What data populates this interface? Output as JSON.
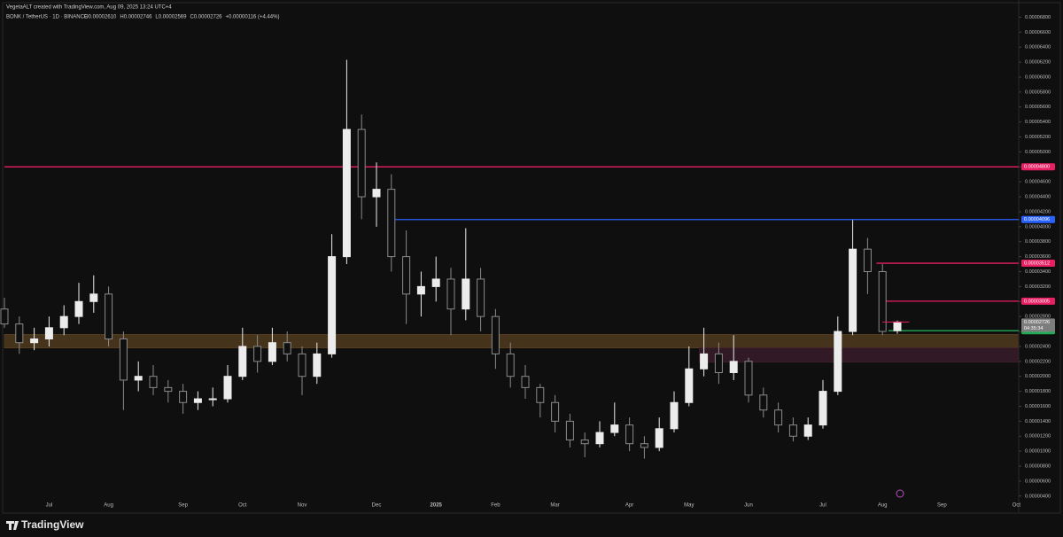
{
  "chart_data": {
    "type": "candlestick",
    "title": "BONK / TetherUS · 1D · BINANCE",
    "subtitle": "VegetaALT created with TradingView.com, Aug 09, 2025 13:24 UTC+4",
    "quote": [
      "O0.00002610",
      "H0.00002746",
      "L0.00002569",
      "C0.00002726",
      "+0.00000116 (+4.44%)"
    ],
    "categories": [
      null,
      null,
      null,
      "Jul",
      null,
      null,
      null,
      "Aug",
      null,
      null,
      null,
      null,
      "Sep",
      null,
      null,
      null,
      "Oct",
      null,
      null,
      null,
      "Nov",
      null,
      null,
      null,
      null,
      "Dec",
      null,
      null,
      null,
      "2025",
      null,
      null,
      null,
      "Feb",
      null,
      null,
      null,
      "Mar",
      null,
      null,
      null,
      null,
      "Apr",
      null,
      null,
      null,
      "May",
      null,
      null,
      null,
      "Jun",
      null,
      null,
      null,
      null,
      "Jul",
      null,
      null,
      null,
      "Aug",
      null,
      null,
      null,
      "Sep",
      null,
      null,
      null,
      null,
      "Oct"
    ],
    "open": [
      2.9e-05,
      2.7e-05,
      2.45e-05,
      2.5e-05,
      2.65e-05,
      2.8e-05,
      3e-05,
      3.1e-05,
      2.5e-05,
      1.95e-05,
      2e-05,
      1.85e-05,
      1.8e-05,
      1.65e-05,
      1.7e-05,
      1.7e-05,
      2e-05,
      2.4e-05,
      2.2e-05,
      2.45e-05,
      2.3e-05,
      2e-05,
      2.3e-05,
      3.6e-05,
      5.3e-05,
      4.4e-05,
      4.5e-05,
      3.6e-05,
      3.1e-05,
      3.2e-05,
      3.3e-05,
      2.9e-05,
      3.3e-05,
      2.8e-05,
      2.3e-05,
      2e-05,
      1.85e-05,
      1.65e-05,
      1.4e-05,
      1.15e-05,
      1.1e-05,
      1.25e-05,
      1.35e-05,
      1.1e-05,
      1.05e-05,
      1.3e-05,
      1.65e-05,
      2.1e-05,
      2.3e-05,
      2.05e-05,
      2.2e-05,
      1.75e-05,
      1.55e-05,
      1.35e-05,
      1.2e-05,
      1.35e-05,
      1.8e-05,
      2.6e-05,
      3.7e-05,
      3.4e-05,
      2.61e-05,
      null,
      null,
      null,
      null,
      null,
      null,
      null,
      null
    ],
    "high": [
      3.05e-05,
      2.8e-05,
      2.65e-05,
      2.8e-05,
      2.95e-05,
      3.25e-05,
      3.35e-05,
      3.2e-05,
      2.6e-05,
      2.2e-05,
      2.15e-05,
      1.95e-05,
      1.9e-05,
      1.8e-05,
      1.85e-05,
      2.15e-05,
      2.65e-05,
      2.55e-05,
      2.65e-05,
      2.6e-05,
      2.4e-05,
      2.45e-05,
      3.9e-05,
      6.23e-05,
      5.5e-05,
      4.86e-05,
      4.7e-05,
      3.95e-05,
      3.4e-05,
      3.6e-05,
      3.45e-05,
      3.98e-05,
      3.45e-05,
      2.9e-05,
      2.45e-05,
      2.15e-05,
      1.9e-05,
      1.75e-05,
      1.5e-05,
      1.25e-05,
      1.4e-05,
      1.65e-05,
      1.45e-05,
      1.2e-05,
      1.45e-05,
      1.8e-05,
      2.4e-05,
      2.65e-05,
      2.45e-05,
      2.55e-05,
      2.25e-05,
      1.85e-05,
      1.65e-05,
      1.45e-05,
      1.45e-05,
      1.95e-05,
      2.8e-05,
      4.09e-05,
      3.85e-05,
      3.5e-05,
      2.746e-05,
      null,
      null,
      null,
      null,
      null,
      null,
      null,
      null
    ],
    "low": [
      2.65e-05,
      2.3e-05,
      2.35e-05,
      2.4e-05,
      2.55e-05,
      2.7e-05,
      2.85e-05,
      2.4e-05,
      1.55e-05,
      1.8e-05,
      1.75e-05,
      1.65e-05,
      1.5e-05,
      1.55e-05,
      1.6e-05,
      1.65e-05,
      1.95e-05,
      2.05e-05,
      2.15e-05,
      2.2e-05,
      1.75e-05,
      1.9e-05,
      2.25e-05,
      3.5e-05,
      4.1e-05,
      4e-05,
      3.4e-05,
      2.7e-05,
      2.8e-05,
      3e-05,
      2.55e-05,
      2.75e-05,
      2.6e-05,
      2.1e-05,
      1.85e-05,
      1.7e-05,
      1.45e-05,
      1.25e-05,
      1.05e-05,
      9.2e-06,
      1.05e-05,
      1.2e-05,
      1e-05,
      9e-06,
      1e-05,
      1.25e-05,
      1.6e-05,
      2e-05,
      1.9e-05,
      1.95e-05,
      1.65e-05,
      1.45e-05,
      1.25e-05,
      1.13e-05,
      1.15e-05,
      1.3e-05,
      1.75e-05,
      2.55e-05,
      3.1e-05,
      2.55e-05,
      2.569e-05,
      null,
      null,
      null,
      null,
      null,
      null,
      null,
      null
    ],
    "close": [
      2.7e-05,
      2.45e-05,
      2.5e-05,
      2.65e-05,
      2.8e-05,
      3e-05,
      3.1e-05,
      2.5e-05,
      1.95e-05,
      2e-05,
      1.85e-05,
      1.8e-05,
      1.65e-05,
      1.7e-05,
      1.7e-05,
      2e-05,
      2.4e-05,
      2.2e-05,
      2.45e-05,
      2.3e-05,
      2e-05,
      2.3e-05,
      3.6e-05,
      5.3e-05,
      4.4e-05,
      4.5e-05,
      3.6e-05,
      3.1e-05,
      3.2e-05,
      3.3e-05,
      2.9e-05,
      3.3e-05,
      2.8e-05,
      2.3e-05,
      2e-05,
      1.85e-05,
      1.65e-05,
      1.4e-05,
      1.15e-05,
      1.1e-05,
      1.25e-05,
      1.35e-05,
      1.1e-05,
      1.05e-05,
      1.3e-05,
      1.65e-05,
      2.1e-05,
      2.3e-05,
      2.05e-05,
      2.2e-05,
      1.75e-05,
      1.55e-05,
      1.35e-05,
      1.2e-05,
      1.35e-05,
      1.8e-05,
      2.6e-05,
      3.7e-05,
      3.4e-05,
      2.6e-05,
      2.726e-05,
      null,
      null,
      null,
      null,
      null,
      null,
      null,
      null
    ],
    "up_color": "#ececec",
    "down_color": "#8a8a8a",
    "ylim": [
      2.2e-06,
      7.03e-05
    ],
    "yticks": [
      {
        "value": 4e-06,
        "label": "0.00000400"
      },
      {
        "value": 6e-06,
        "label": "0.00000600"
      },
      {
        "value": 8e-06,
        "label": "0.00000800"
      },
      {
        "value": 1e-05,
        "label": "0.00001000"
      },
      {
        "value": 1.2e-05,
        "label": "0.00001200"
      },
      {
        "value": 1.4e-05,
        "label": "0.00001400"
      },
      {
        "value": 1.6e-05,
        "label": "0.00001600"
      },
      {
        "value": 1.8e-05,
        "label": "0.00001800"
      },
      {
        "value": 2e-05,
        "label": "0.00002000"
      },
      {
        "value": 2.2e-05,
        "label": "0.00002200"
      },
      {
        "value": 2.4e-05,
        "label": "0.00002400"
      },
      {
        "value": 2.6e-05,
        "label": "0.00002600"
      },
      {
        "value": 2.8e-05,
        "label": "0.00002800"
      },
      {
        "value": 3e-05,
        "label": "0.00003000"
      },
      {
        "value": 3.2e-05,
        "label": "0.00003200"
      },
      {
        "value": 3.4e-05,
        "label": "0.00003400"
      },
      {
        "value": 3.6e-05,
        "label": "0.00003600"
      },
      {
        "value": 3.8e-05,
        "label": "0.00003800"
      },
      {
        "value": 4e-05,
        "label": "0.00004000"
      },
      {
        "value": 4.2e-05,
        "label": "0.00004200"
      },
      {
        "value": 4.4e-05,
        "label": "0.00004400"
      },
      {
        "value": 4.6e-05,
        "label": "0.00004600"
      },
      {
        "value": 4.8e-05,
        "label": "0.00004800"
      },
      {
        "value": 5e-05,
        "label": "0.00005000"
      },
      {
        "value": 5.2e-05,
        "label": "0.00005200"
      },
      {
        "value": 5.4e-05,
        "label": "0.00005400"
      },
      {
        "value": 5.6e-05,
        "label": "0.00005600"
      },
      {
        "value": 5.8e-05,
        "label": "0.00005800"
      },
      {
        "value": 6e-05,
        "label": "0.00006000"
      },
      {
        "value": 6.2e-05,
        "label": "0.00006200"
      },
      {
        "value": 6.4e-05,
        "label": "0.00006400"
      },
      {
        "value": 6.6e-05,
        "label": "0.00006600"
      },
      {
        "value": 6.8e-05,
        "label": "0.00006800"
      }
    ],
    "zones": [
      {
        "low": 2.38e-05,
        "high": 2.56e-05,
        "color": "#5a4020"
      },
      {
        "low": 2.19e-05,
        "high": 2.38e-05,
        "color": "#3e1f2e"
      }
    ],
    "levels": [
      {
        "value": 4.8e-05,
        "label": "0.00004800",
        "color": "#e91e63"
      },
      {
        "value": 4.096e-05,
        "label": "0.00004096",
        "color": "#2962ff"
      },
      {
        "value": 3.512e-05,
        "label": "0.00003512",
        "color": "#e91e63"
      },
      {
        "value": 3.005e-05,
        "label": "0.00003005",
        "color": "#e91e63"
      },
      {
        "value": 2.61e-05,
        "label": "0.00002610",
        "color": "#22ab55"
      }
    ],
    "last_price": {
      "value": 2.726e-05,
      "label": "0.00002726",
      "countdown": "04:35:34",
      "color": "#7d7d7d"
    },
    "grid": false
  },
  "footer": "TradingView"
}
